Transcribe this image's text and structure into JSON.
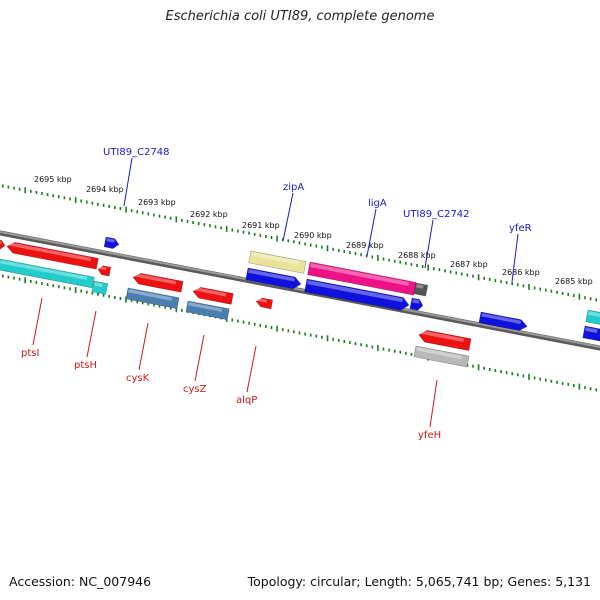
{
  "title": "Escherichia coli UTI89, complete genome",
  "accession": "Accession: NC_007946",
  "topology": "Topology: circular; Length: 5,065,741 bp; Genes: 5,131",
  "kbp_labels": [
    "2695 kbp",
    "2694 kbp",
    "2693 kbp",
    "2692 kbp",
    "2691 kbp",
    "2690 kbp",
    "2689 kbp",
    "2688 kbp",
    "2687 kbp",
    "2686 kbp",
    "2685 kbp"
  ],
  "upper_gene_labels": [
    "UTI89_C2748",
    "zipA",
    "ligA",
    "UTI89_C2742",
    "yfeR"
  ],
  "lower_gene_labels": [
    "ptsI",
    "ptsH",
    "cysK",
    "cysZ",
    "alqP",
    "yfeH"
  ],
  "colors": {
    "upper_label": "#1a1acc",
    "lower_label": "#cc1a1a",
    "tick": "#1f7a1f",
    "backbone": "#808080",
    "red": "#ee1111",
    "cyan": "#22cccc",
    "blue": "#1111dd",
    "steelblue": "#4a7db0",
    "pink": "#ee1188",
    "khaki": "#ece39a",
    "gray": "#b8b8b8"
  }
}
